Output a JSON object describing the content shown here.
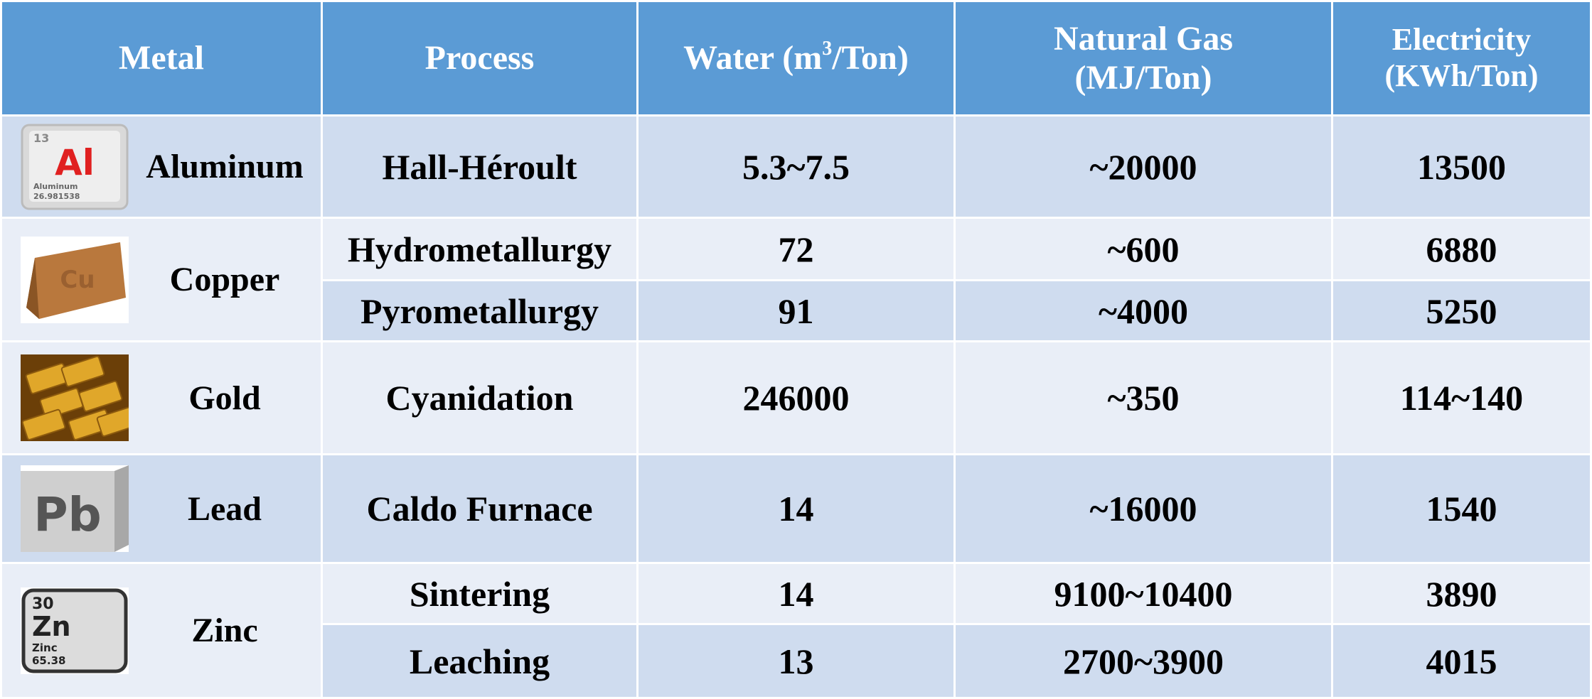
{
  "table": {
    "header": {
      "metal": "Metal",
      "process": "Process",
      "water": {
        "before": "Water (m",
        "sup": "3",
        "after": "/Ton)"
      },
      "gas": [
        "Natural Gas",
        "(MJ/Ton)"
      ],
      "electricity": [
        "Electricity",
        "(KWh/Ton)"
      ]
    },
    "rows": [
      {
        "metal": "Aluminum",
        "icon": {
          "number": "13",
          "symbol": "Al",
          "name": "Aluminum",
          "mass": "26.981538"
        },
        "processes": [
          {
            "process": "Hall-Héroult",
            "water": "5.3~7.5",
            "gas": "~20000",
            "electricity": "13500"
          }
        ]
      },
      {
        "metal": "Copper",
        "icon": {
          "symbol": "Cu"
        },
        "processes": [
          {
            "process": "Hydrometallurgy",
            "water": "72",
            "gas": "~600",
            "electricity": "6880"
          },
          {
            "process": "Pyrometallurgy",
            "water": "91",
            "gas": "~4000",
            "electricity": "5250"
          }
        ]
      },
      {
        "metal": "Gold",
        "icon": {},
        "processes": [
          {
            "process": "Cyanidation",
            "water": "246000",
            "gas": "~350",
            "electricity": "114~140"
          }
        ]
      },
      {
        "metal": "Lead",
        "icon": {
          "symbol": "Pb"
        },
        "processes": [
          {
            "process": "Caldo Furnace",
            "water": "14",
            "gas": "~16000",
            "electricity": "1540"
          }
        ]
      },
      {
        "metal": "Zinc",
        "icon": {
          "number": "30",
          "symbol": "Zn",
          "name": "Zinc",
          "mass": "65.38"
        },
        "processes": [
          {
            "process": "Sintering",
            "water": "14",
            "gas": "9100~10400",
            "electricity": "3890"
          },
          {
            "process": "Leaching",
            "water": "13",
            "gas": "2700~3900",
            "electricity": "4015"
          }
        ]
      }
    ]
  }
}
